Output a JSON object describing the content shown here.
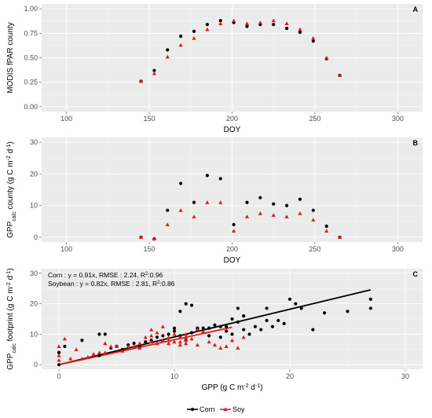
{
  "legend": {
    "placement": "bottom",
    "entries": [
      {
        "label": "Corn",
        "color": "#000000",
        "shape": "circle"
      },
      {
        "label": "Soy",
        "color": "#e41a1c",
        "shape": "triangle"
      }
    ]
  },
  "chart_data": [
    {
      "type": "scatter",
      "panel_label": "A",
      "xlabel": "DOY",
      "ylabel": "MODIS fPAR county",
      "xlim": [
        85,
        315
      ],
      "ylim": [
        -0.05,
        1.05
      ],
      "x_ticks": [
        100,
        150,
        200,
        250,
        300
      ],
      "y_ticks": [
        "0.00",
        "0.25",
        "0.50",
        "0.75",
        "1.00"
      ],
      "grid": true,
      "series": [
        {
          "name": "Corn",
          "x": [
            145,
            153,
            161,
            169,
            177,
            185,
            193,
            201,
            209,
            217,
            225,
            233,
            241,
            249,
            257,
            265
          ],
          "y": [
            0.26,
            0.37,
            0.58,
            0.72,
            0.77,
            0.84,
            0.88,
            0.86,
            0.82,
            0.84,
            0.84,
            0.8,
            0.76,
            0.67,
            0.49,
            0.32
          ]
        },
        {
          "name": "Soy",
          "x": [
            145,
            153,
            161,
            169,
            177,
            185,
            193,
            201,
            209,
            217,
            225,
            233,
            241,
            249,
            257,
            265
          ],
          "y": [
            0.26,
            0.34,
            0.51,
            0.63,
            0.7,
            0.79,
            0.85,
            0.88,
            0.85,
            0.86,
            0.88,
            0.85,
            0.79,
            0.7,
            0.5,
            0.32
          ]
        }
      ]
    },
    {
      "type": "scatter",
      "panel_label": "B",
      "xlabel": "DOY",
      "ylabel_parts": {
        "main": "GPP",
        "sub": "calc",
        "rest": " county (g C m",
        "sup1": "-2",
        "mid": " d",
        "sup2": "-1",
        "end": ")"
      },
      "xlim": [
        85,
        315
      ],
      "ylim": [
        -1.5,
        31.5
      ],
      "x_ticks": [
        100,
        150,
        200,
        250,
        300
      ],
      "y_ticks": [
        "0",
        "10",
        "20",
        "30"
      ],
      "grid": true,
      "series": [
        {
          "name": "Corn",
          "x": [
            145,
            153,
            161,
            169,
            177,
            185,
            193,
            201,
            209,
            217,
            225,
            233,
            241,
            249,
            257,
            265
          ],
          "y": [
            0.0,
            -0.5,
            8.5,
            17.0,
            11.0,
            19.5,
            18.5,
            4.0,
            11.0,
            12.5,
            10.5,
            10.0,
            12.0,
            8.5,
            3.5,
            0.0
          ]
        },
        {
          "name": "Soy",
          "x": [
            145,
            153,
            161,
            169,
            177,
            185,
            193,
            201,
            209,
            217,
            225,
            233,
            241,
            249,
            257,
            265
          ],
          "y": [
            0.0,
            -0.5,
            4.0,
            8.5,
            6.5,
            11.0,
            11.0,
            2.0,
            6.5,
            7.5,
            7.0,
            6.5,
            7.5,
            5.5,
            2.0,
            0.0
          ]
        }
      ]
    },
    {
      "type": "scatter",
      "panel_label": "C",
      "xlabel_parts": {
        "main": "GPP  (g C m",
        "sup1": "-2",
        "mid": " d",
        "sup2": "-1",
        "end": ")"
      },
      "ylabel_parts": {
        "main": "GPP",
        "sub": "calc",
        "rest": " footprint (g C m",
        "sup1": "-2",
        "mid": " d",
        "sup2": "-1",
        "end": ")"
      },
      "xlim": [
        -1.5,
        31.5
      ],
      "ylim": [
        -1.5,
        31.5
      ],
      "x_ticks": [
        0,
        10,
        20,
        30
      ],
      "y_ticks": [
        "0",
        "10",
        "20",
        "30"
      ],
      "grid": true,
      "annotations": [
        {
          "label": "Corn",
          "eq": " : y = 0.91x,  RMSE : 2.24,  R",
          "sup": "2",
          "tail": ":0.96"
        },
        {
          "label": "Soybean",
          "eq": " : y = 0.82x,  RMSE : 2.81,  R",
          "sup": "2",
          "tail": ":0.86"
        }
      ],
      "fit_lines": [
        {
          "name": "Corn",
          "slope": 0.91,
          "x_range": [
            0,
            27
          ]
        },
        {
          "name": "Soy",
          "slope": 0.82,
          "x_range": [
            0,
            15
          ]
        }
      ],
      "series": [
        {
          "name": "Corn",
          "x": [
            0,
            0,
            0,
            0.5,
            2,
            3.5,
            3.5,
            4,
            4.5,
            5,
            5.5,
            6,
            6.5,
            7,
            7.5,
            8,
            8.5,
            9,
            9.5,
            10,
            10.5,
            11,
            11.5,
            11.5,
            12,
            12,
            12.5,
            13,
            13,
            13.5,
            14,
            14,
            14.5,
            15,
            15,
            15.5,
            15.5,
            16,
            16.5,
            17,
            17.5,
            18,
            18,
            18.5,
            19,
            19.5,
            20,
            20.5,
            21,
            22,
            23,
            25,
            27,
            27,
            10,
            10.5,
            11,
            14.5,
            16
          ],
          "y": [
            0,
            4,
            4,
            6,
            8,
            3,
            10,
            10,
            5.5,
            6,
            5,
            6.5,
            7,
            6,
            7.5,
            8,
            9,
            9.5,
            10,
            11,
            9.5,
            8,
            10.5,
            19.5,
            11.5,
            12,
            12,
            9.5,
            12,
            13,
            9,
            12.5,
            11,
            10,
            15,
            14,
            18.5,
            11.5,
            10,
            12.5,
            11.5,
            14.5,
            18.5,
            12.5,
            14.5,
            13.5,
            21.5,
            20,
            18.5,
            11.5,
            17,
            17.5,
            18.5,
            21.5,
            12,
            17.5,
            20,
            12.5,
            16
          ]
        },
        {
          "name": "Soy",
          "x": [
            0,
            0,
            0,
            0.5,
            1,
            1.5,
            2,
            2.5,
            3,
            3.5,
            4,
            4,
            4.5,
            5,
            5.5,
            6,
            6.5,
            7,
            7,
            7.5,
            8,
            8,
            8.5,
            9,
            9,
            9.5,
            9.5,
            10,
            10,
            10.5,
            10.5,
            11,
            11,
            11,
            11.5,
            12,
            12,
            12.5,
            13,
            13.5,
            14,
            14.5,
            15,
            15.5,
            16,
            8,
            8.5,
            9,
            9.5,
            10.5,
            11
          ],
          "y": [
            1.5,
            3,
            6,
            8.5,
            2,
            5,
            2,
            2.5,
            3.5,
            4,
            7,
            4,
            6,
            6,
            4.5,
            6,
            6,
            5.5,
            7,
            9,
            7.5,
            11.5,
            7,
            8,
            12.5,
            8,
            9,
            7.5,
            10,
            9,
            7.5,
            8,
            9,
            7,
            8.5,
            11.5,
            6.5,
            11,
            7.5,
            6.5,
            5.5,
            6,
            8,
            5.5,
            9,
            9.5,
            10.5,
            8,
            7,
            6.5,
            10
          ]
        }
      ]
    }
  ]
}
